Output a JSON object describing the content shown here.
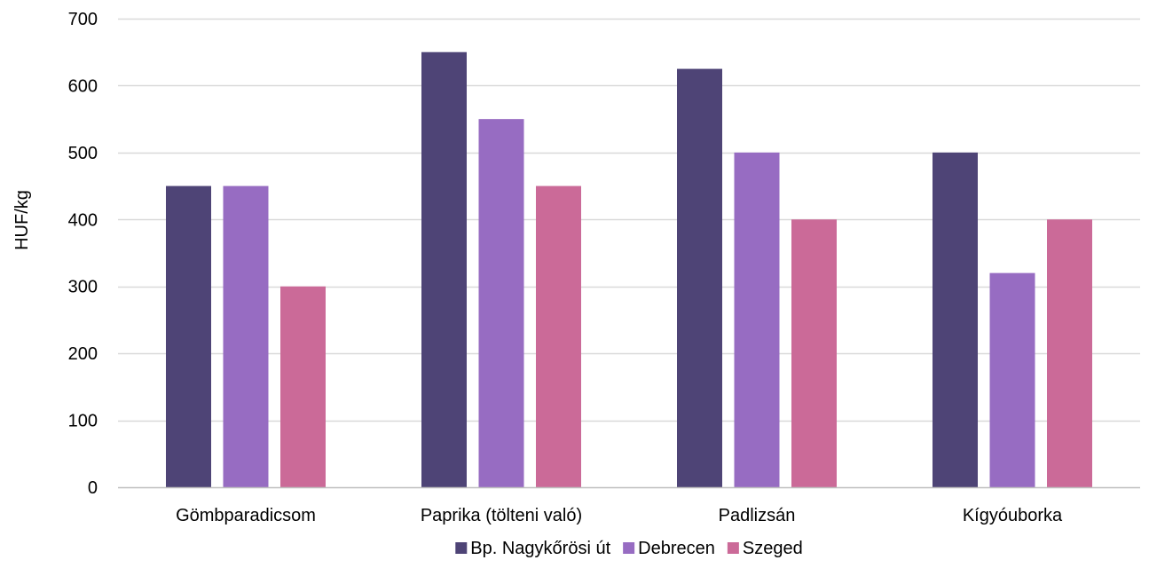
{
  "chart_data": {
    "type": "bar",
    "title": "",
    "xlabel": "",
    "ylabel": "HUF/kg",
    "ylim": [
      0,
      700
    ],
    "yticks": [
      0,
      100,
      200,
      300,
      400,
      500,
      600,
      700
    ],
    "grid": true,
    "legend_position": "bottom",
    "categories": [
      "Gömbparadicsom",
      "Paprika (tölteni való)",
      "Padlizsán",
      "Kígyóuborka"
    ],
    "series": [
      {
        "name": "Bp. Nagykőrösi út",
        "color": "#4e4476",
        "values": [
          450,
          650,
          625,
          500
        ]
      },
      {
        "name": "Debrecen",
        "color": "#976cc2",
        "values": [
          450,
          550,
          500,
          320
        ]
      },
      {
        "name": "Szeged",
        "color": "#cb6a98",
        "values": [
          300,
          450,
          400,
          400
        ]
      }
    ],
    "gridline_color": "#d9d9d9",
    "axis_color": "#bfbfbf"
  }
}
